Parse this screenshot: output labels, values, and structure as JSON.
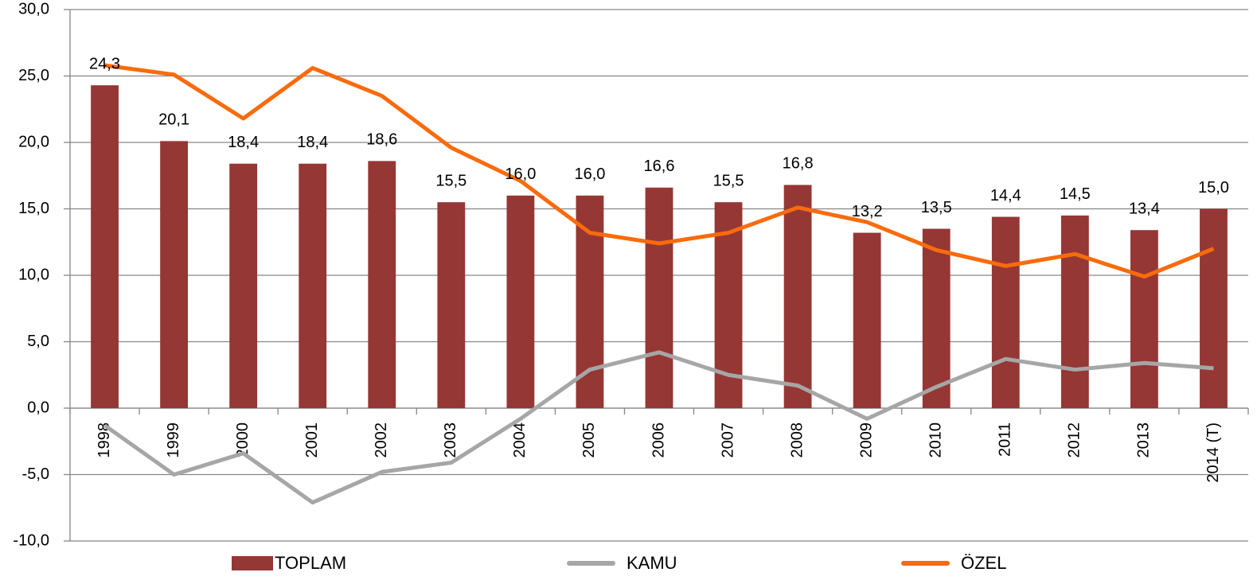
{
  "chart_data": {
    "type": "bar_line",
    "categories": [
      "1998",
      "1999",
      "2000",
      "2001",
      "2002",
      "2003",
      "2004",
      "2005",
      "2006",
      "2007",
      "2008",
      "2009",
      "2010",
      "2011",
      "2012",
      "2013",
      "2014 (T)"
    ],
    "series": [
      {
        "name": "TOPLAM",
        "type": "bar",
        "color": "#953735",
        "values": [
          24.3,
          20.1,
          18.4,
          18.4,
          18.6,
          15.5,
          16.0,
          16.0,
          16.6,
          15.5,
          16.8,
          13.2,
          13.5,
          14.4,
          14.5,
          13.4,
          15.0
        ],
        "value_labels": [
          "24,3",
          "20,1",
          "18,4",
          "18,4",
          "18,6",
          "15,5",
          "16,0",
          "16,0",
          "16,6",
          "15,5",
          "16,8",
          "13,2",
          "13,5",
          "14,4",
          "14,5",
          "13,4",
          "15,0"
        ]
      },
      {
        "name": "KAMU",
        "type": "line",
        "color": "#a6a6a6",
        "values": [
          -1.3,
          -5.0,
          -3.4,
          -7.1,
          -4.8,
          -4.1,
          -0.8,
          2.9,
          4.2,
          2.5,
          1.7,
          -0.8,
          1.6,
          3.7,
          2.9,
          3.4,
          3.0
        ]
      },
      {
        "name": "ÖZEL",
        "type": "line",
        "color": "#f96b0c",
        "values": [
          25.8,
          25.1,
          21.8,
          25.6,
          23.5,
          19.6,
          17.1,
          13.2,
          12.4,
          13.2,
          15.1,
          14.0,
          11.9,
          10.7,
          11.6,
          9.9,
          12.0
        ]
      }
    ],
    "ylim": [
      -10,
      30
    ],
    "yticks": [
      {
        "value": -10,
        "label": "-10,0"
      },
      {
        "value": -5,
        "label": "-5,0"
      },
      {
        "value": 0,
        "label": "0,0"
      },
      {
        "value": 5,
        "label": "5,0"
      },
      {
        "value": 10,
        "label": "10,0"
      },
      {
        "value": 15,
        "label": "15,0"
      },
      {
        "value": 20,
        "label": "20,0"
      },
      {
        "value": 25,
        "label": "25,0"
      },
      {
        "value": 30,
        "label": "30,0"
      }
    ],
    "grid": true,
    "legend": "bottom"
  }
}
